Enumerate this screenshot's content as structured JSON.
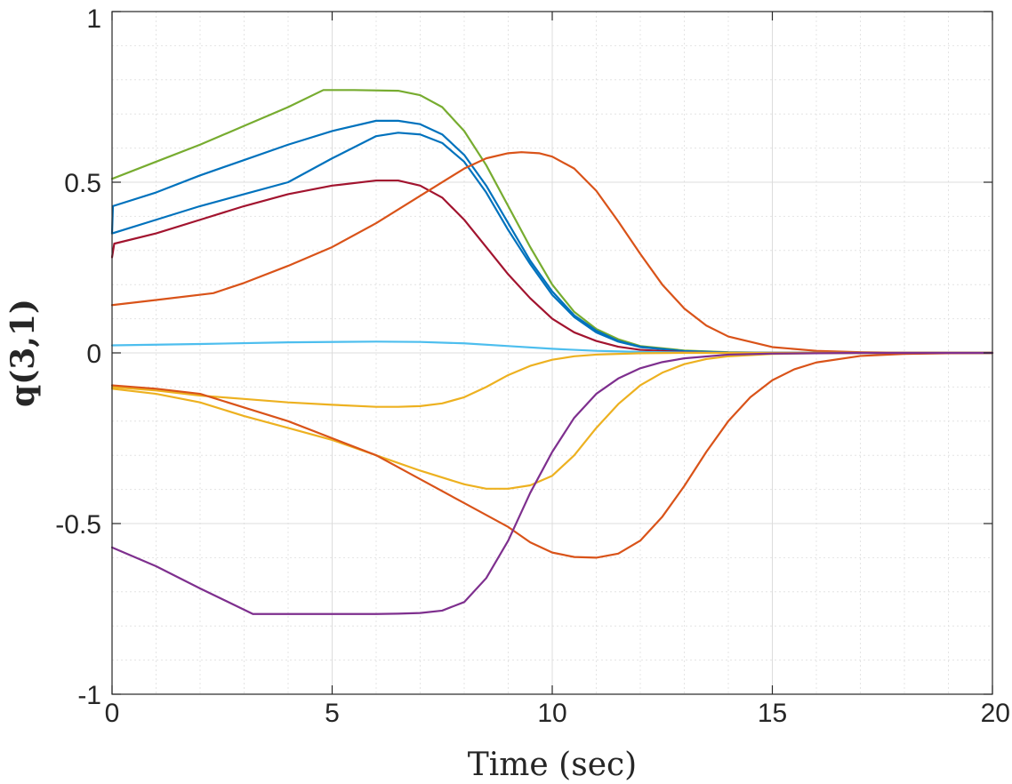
{
  "chart_data": {
    "type": "line",
    "xlabel": "Time (sec)",
    "ylabel": "q(3,1)",
    "xlim": [
      0,
      20
    ],
    "ylim": [
      -1,
      1
    ],
    "xticks": [
      0,
      5,
      10,
      15,
      20
    ],
    "yticks": [
      -1,
      -0.5,
      0,
      0.5,
      1
    ],
    "xtick_labels": [
      "0",
      "5",
      "10",
      "15",
      "20"
    ],
    "ytick_labels": [
      "-1",
      "-0.5",
      "0",
      "0.5",
      "1"
    ],
    "grid": true,
    "minor_grid": true,
    "series": [
      {
        "color": "#77ac30",
        "x": [
          0,
          1,
          2,
          3,
          4,
          4.8,
          5.5,
          6.5,
          7,
          7.5,
          8,
          8.5,
          9,
          9.5,
          10,
          10.5,
          11,
          11.5,
          12,
          13,
          14,
          15,
          17,
          20
        ],
        "y": [
          0.51,
          0.56,
          0.61,
          0.665,
          0.72,
          0.77,
          0.77,
          0.768,
          0.755,
          0.72,
          0.65,
          0.55,
          0.43,
          0.31,
          0.2,
          0.12,
          0.07,
          0.04,
          0.02,
          0.007,
          0.002,
          0.0005,
          0,
          0
        ]
      },
      {
        "color": "#0072bd",
        "x": [
          0,
          0.02,
          1,
          2,
          3,
          4,
          5,
          6,
          6.5,
          7,
          7.5,
          8,
          8.5,
          9,
          9.5,
          10,
          10.5,
          11,
          11.5,
          12,
          13,
          14,
          15,
          17,
          20
        ],
        "y": [
          0.35,
          0.43,
          0.47,
          0.52,
          0.565,
          0.61,
          0.65,
          0.68,
          0.68,
          0.67,
          0.64,
          0.58,
          0.49,
          0.38,
          0.27,
          0.18,
          0.11,
          0.065,
          0.035,
          0.018,
          0.005,
          0.001,
          0,
          0,
          0
        ]
      },
      {
        "color": "#0072bd",
        "x": [
          0,
          1,
          2,
          3,
          4,
          5,
          6,
          6.5,
          7,
          7.5,
          8,
          8.5,
          9,
          9.5,
          10,
          10.5,
          11,
          11.5,
          12,
          13,
          14,
          15,
          17,
          20
        ],
        "y": [
          0.35,
          0.39,
          0.43,
          0.465,
          0.5,
          0.57,
          0.635,
          0.645,
          0.64,
          0.615,
          0.56,
          0.47,
          0.36,
          0.26,
          0.17,
          0.105,
          0.06,
          0.033,
          0.017,
          0.005,
          0.001,
          0,
          0,
          0
        ]
      },
      {
        "color": "#a2142f",
        "x": [
          0,
          0.05,
          1,
          2,
          3,
          4,
          5,
          6,
          6.5,
          7,
          7.5,
          8,
          8.5,
          9,
          9.5,
          10,
          10.5,
          11,
          11.5,
          12,
          13,
          14,
          15,
          17,
          20
        ],
        "y": [
          0.28,
          0.32,
          0.35,
          0.39,
          0.43,
          0.465,
          0.49,
          0.505,
          0.505,
          0.49,
          0.455,
          0.39,
          0.31,
          0.23,
          0.16,
          0.1,
          0.06,
          0.035,
          0.018,
          0.009,
          0.002,
          0,
          0,
          0,
          0
        ]
      },
      {
        "color": "#d95319",
        "x": [
          0,
          1,
          2.3,
          3,
          4,
          5,
          6,
          7,
          8,
          8.5,
          9,
          9.3,
          9.7,
          10,
          10.5,
          11,
          11.5,
          12,
          12.5,
          13,
          13.5,
          14,
          15,
          16,
          17,
          18,
          20
        ],
        "y": [
          0.14,
          0.155,
          0.175,
          0.205,
          0.255,
          0.31,
          0.38,
          0.46,
          0.54,
          0.57,
          0.585,
          0.588,
          0.585,
          0.575,
          0.54,
          0.475,
          0.385,
          0.29,
          0.2,
          0.13,
          0.08,
          0.048,
          0.017,
          0.006,
          0.002,
          0.0005,
          0
        ]
      },
      {
        "color": "#4dbeee",
        "x": [
          0,
          2,
          4,
          6,
          7,
          8,
          9,
          10,
          11,
          12,
          13,
          14,
          15,
          17,
          20
        ],
        "y": [
          0.022,
          0.026,
          0.031,
          0.033,
          0.032,
          0.028,
          0.02,
          0.012,
          0.006,
          0.003,
          0.001,
          0,
          0,
          0,
          0
        ]
      },
      {
        "color": "#edb120",
        "x": [
          0,
          1,
          2,
          3,
          4,
          5,
          6,
          6.5,
          7,
          7.5,
          8,
          8.5,
          9,
          9.5,
          10,
          10.5,
          11,
          12,
          13,
          14,
          15,
          17,
          20
        ],
        "y": [
          -0.1,
          -0.11,
          -0.125,
          -0.135,
          -0.145,
          -0.152,
          -0.158,
          -0.158,
          -0.156,
          -0.148,
          -0.13,
          -0.1,
          -0.065,
          -0.038,
          -0.02,
          -0.01,
          -0.005,
          -0.001,
          0,
          0,
          0,
          0,
          0
        ]
      },
      {
        "color": "#edb120",
        "x": [
          0,
          1,
          2,
          3,
          4,
          5,
          6,
          7,
          8,
          8.5,
          9,
          9.5,
          10,
          10.5,
          11,
          11.5,
          12,
          12.5,
          13,
          13.5,
          14,
          15,
          16,
          17,
          20
        ],
        "y": [
          -0.105,
          -0.12,
          -0.145,
          -0.185,
          -0.22,
          -0.255,
          -0.3,
          -0.345,
          -0.385,
          -0.398,
          -0.398,
          -0.388,
          -0.36,
          -0.3,
          -0.22,
          -0.15,
          -0.095,
          -0.058,
          -0.033,
          -0.018,
          -0.01,
          -0.003,
          -0.001,
          0,
          0
        ]
      },
      {
        "color": "#d95319",
        "x": [
          0,
          1,
          2,
          3,
          4,
          5,
          6,
          7,
          8,
          9,
          9.5,
          10,
          10.5,
          11,
          11.5,
          12,
          12.5,
          13,
          13.5,
          14,
          14.5,
          15,
          15.5,
          16,
          17,
          18,
          19,
          20
        ],
        "y": [
          -0.095,
          -0.105,
          -0.12,
          -0.16,
          -0.2,
          -0.25,
          -0.3,
          -0.37,
          -0.44,
          -0.51,
          -0.555,
          -0.585,
          -0.598,
          -0.6,
          -0.588,
          -0.55,
          -0.48,
          -0.39,
          -0.29,
          -0.2,
          -0.13,
          -0.08,
          -0.048,
          -0.028,
          -0.009,
          -0.003,
          -0.001,
          0
        ]
      },
      {
        "color": "#7e2f8e",
        "x": [
          0,
          1,
          2,
          3.2,
          4,
          5,
          6,
          6.5,
          7,
          7.5,
          8,
          8.5,
          9,
          9.5,
          10,
          10.5,
          11,
          11.5,
          12,
          12.5,
          13,
          14,
          15,
          16,
          17,
          20
        ],
        "y": [
          -0.57,
          -0.625,
          -0.69,
          -0.765,
          -0.765,
          -0.765,
          -0.765,
          -0.764,
          -0.762,
          -0.755,
          -0.73,
          -0.66,
          -0.55,
          -0.41,
          -0.29,
          -0.19,
          -0.12,
          -0.075,
          -0.045,
          -0.027,
          -0.016,
          -0.005,
          -0.002,
          -0.001,
          0,
          0
        ]
      }
    ]
  }
}
